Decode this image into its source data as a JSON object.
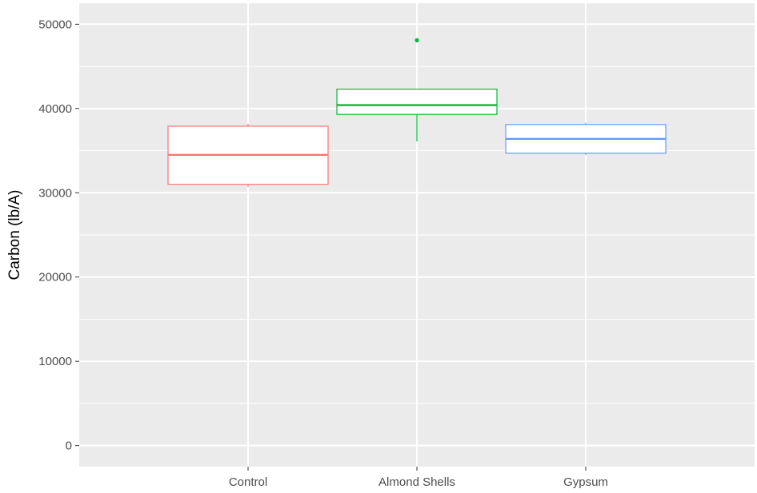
{
  "chart_data": {
    "type": "boxplot",
    "xlabel": "",
    "ylabel": "Carbon (lb/A)",
    "ylim": [
      -2500,
      52500
    ],
    "y_ticks": [
      0,
      10000,
      20000,
      30000,
      40000,
      50000
    ],
    "y_tick_labels": [
      "0",
      "10000",
      "20000",
      "30000",
      "40000",
      "50000"
    ],
    "grid": true,
    "legend": "none",
    "categories": [
      "Control",
      "Almond Shells",
      "Gypsum"
    ],
    "boxes": [
      {
        "category": "Control",
        "color": "#F8766D",
        "whisker_low": 30700,
        "q1": 31000,
        "median": 34500,
        "q3": 37900,
        "whisker_high": 38200,
        "outliers": []
      },
      {
        "category": "Almond Shells",
        "color": "#00BA38",
        "whisker_low": 36100,
        "q1": 39300,
        "median": 40400,
        "q3": 42300,
        "whisker_high": 42300,
        "outliers": [
          48100
        ]
      },
      {
        "category": "Gypsum",
        "color": "#619CFF",
        "whisker_low": 34500,
        "q1": 34700,
        "median": 36400,
        "q3": 38100,
        "whisker_high": 38300,
        "outliers": []
      }
    ],
    "colors": {
      "panel": "#EBEBEB",
      "grid": "#FFFFFF",
      "tick_text": "#4D4D4D",
      "tick_mark": "#333333"
    }
  }
}
